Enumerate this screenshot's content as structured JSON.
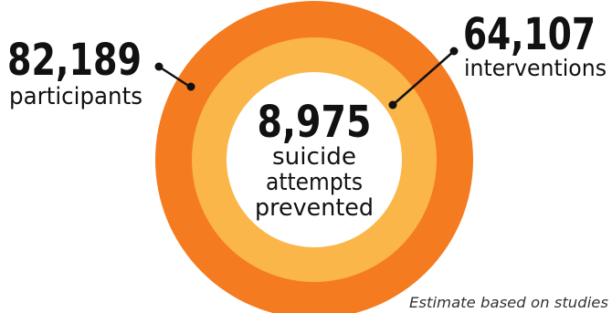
{
  "colors": {
    "outer_ring": "#F47B20",
    "middle_ring": "#FBB64A",
    "center": "#FFFFFF",
    "text": "#111111",
    "connector": "#111111"
  },
  "rings": {
    "outer": {
      "value": "82,189",
      "label": "participants"
    },
    "middle": {
      "value": "64,107",
      "label": "interventions"
    },
    "center": {
      "value": "8,975",
      "label_lines": [
        "suicide",
        "attempts",
        "prevented"
      ]
    }
  },
  "footnote": "Estimate based on studies"
}
